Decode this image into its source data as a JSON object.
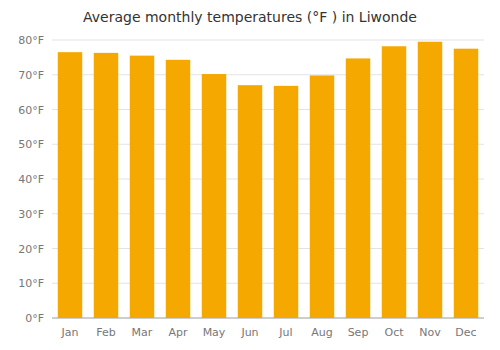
{
  "chart_data": {
    "type": "bar",
    "title": "Average monthly temperatures (°F ) in Liwonde",
    "categories": [
      "Jan",
      "Feb",
      "Mar",
      "Apr",
      "May",
      "Jun",
      "Jul",
      "Aug",
      "Sep",
      "Oct",
      "Nov",
      "Dec"
    ],
    "values": [
      76.5,
      76.3,
      75.5,
      74.3,
      70.2,
      67.0,
      66.8,
      69.8,
      74.7,
      78.2,
      79.5,
      77.5
    ],
    "color": "#F5A800",
    "ylim": [
      0,
      80
    ],
    "yticks": [
      {
        "value": 0,
        "label": "0°F"
      },
      {
        "value": 10,
        "label": "10°F"
      },
      {
        "value": 20,
        "label": "20°F"
      },
      {
        "value": 30,
        "label": "30°F"
      },
      {
        "value": 40,
        "label": "40°F"
      },
      {
        "value": 50,
        "label": "50°F"
      },
      {
        "value": 60,
        "label": "60°F"
      },
      {
        "value": 70,
        "label": "70°F"
      },
      {
        "value": 80,
        "label": "80°F"
      }
    ],
    "grid": true
  }
}
